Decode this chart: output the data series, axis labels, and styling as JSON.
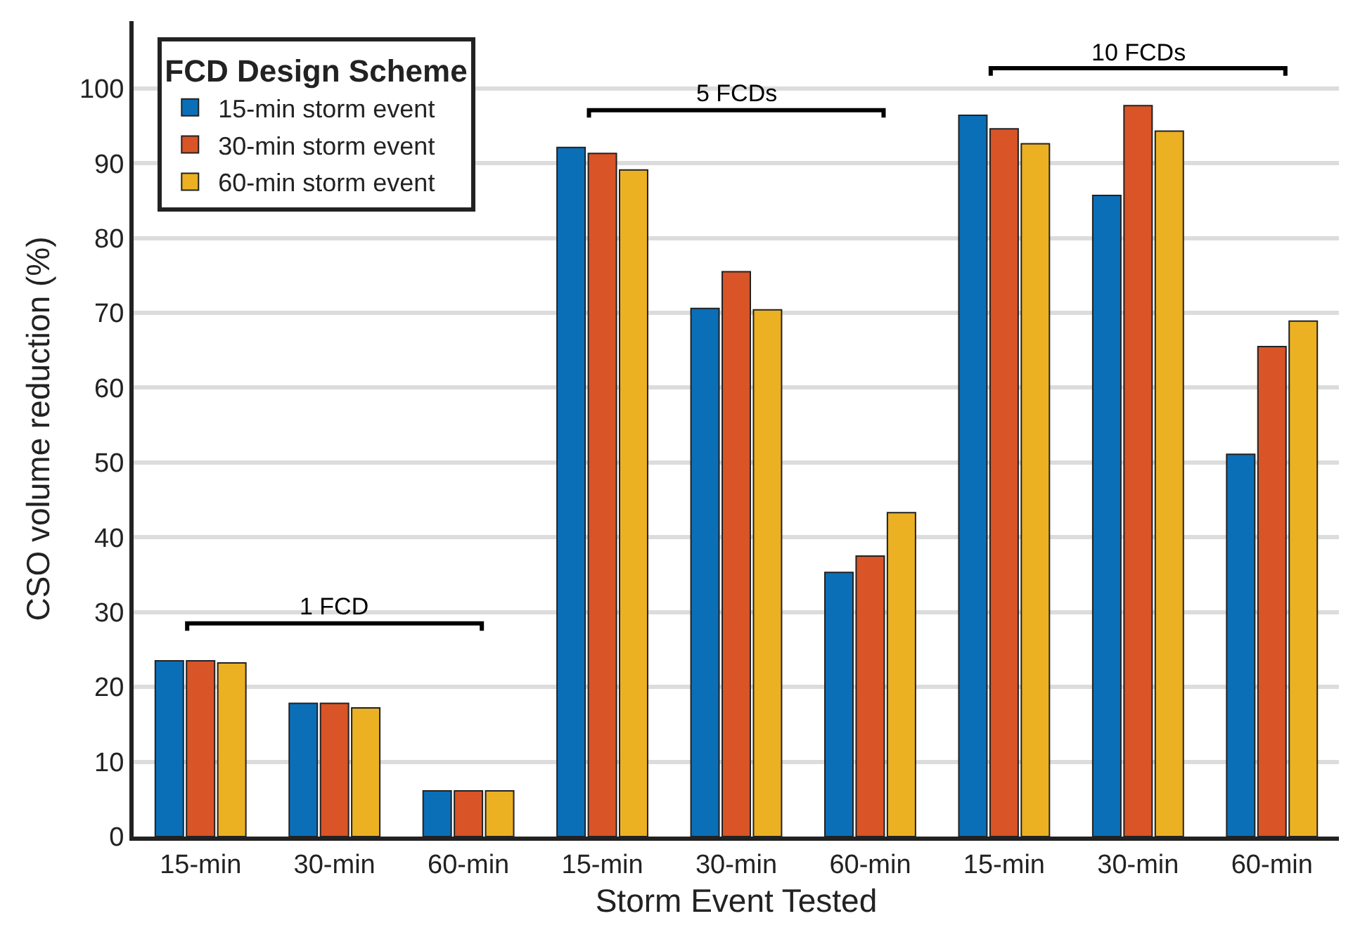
{
  "chart_data": {
    "type": "bar",
    "xlabel": "Storm Event Tested",
    "ylabel": "CSO volume reduction (%)",
    "legend_title": "FCD Design Scheme",
    "categories": [
      "15-min",
      "30-min",
      "60-min",
      "15-min",
      "30-min",
      "60-min",
      "15-min",
      "30-min",
      "60-min"
    ],
    "series": [
      {
        "name": "15-min storm event",
        "color": "#0b6fb8",
        "values": [
          23.5,
          17.8,
          6.1,
          92.1,
          70.6,
          35.3,
          96.4,
          85.7,
          51.1
        ]
      },
      {
        "name": "30-min storm event",
        "color": "#d95427",
        "values": [
          23.5,
          17.8,
          6.1,
          91.3,
          75.5,
          37.5,
          94.6,
          97.7,
          65.5
        ]
      },
      {
        "name": "60-min storm event",
        "color": "#ebb123",
        "values": [
          23.2,
          17.2,
          6.1,
          89.1,
          70.4,
          43.3,
          92.6,
          94.3,
          68.9
        ]
      }
    ],
    "ylim": [
      0,
      109
    ],
    "yticks": [
      0,
      10,
      20,
      30,
      40,
      50,
      60,
      70,
      80,
      90,
      100
    ],
    "grid": "y",
    "legend": "top left",
    "annotations": [
      "1 FCD",
      "5 FCDs",
      "10 FCDs"
    ]
  }
}
